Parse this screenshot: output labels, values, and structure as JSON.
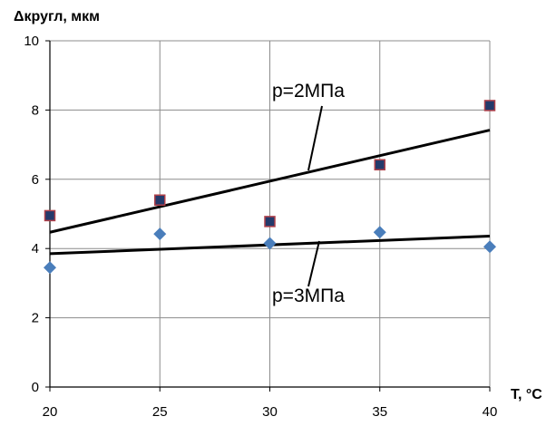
{
  "chart_data": {
    "type": "scatter",
    "ylabel": "Δкругл, мкм",
    "xlabel": "T, °C",
    "xlim": [
      20,
      40
    ],
    "ylim": [
      0,
      10
    ],
    "x_ticks": [
      20,
      25,
      30,
      35,
      40
    ],
    "y_ticks": [
      0,
      2,
      4,
      6,
      8,
      10
    ],
    "grid": true,
    "series": [
      {
        "marker": "square",
        "color": "#243a6b",
        "edge_color": "#b0404a",
        "points": [
          {
            "x": 20,
            "y": 4.95
          },
          {
            "x": 25,
            "y": 5.4
          },
          {
            "x": 30,
            "y": 4.78
          },
          {
            "x": 35,
            "y": 6.42
          },
          {
            "x": 40,
            "y": 8.13
          }
        ],
        "trendline": {
          "x": [
            20,
            40
          ],
          "y": [
            4.47,
            7.42
          ]
        }
      },
      {
        "marker": "diamond",
        "color": "#4a7ebb",
        "points": [
          {
            "x": 20,
            "y": 3.45
          },
          {
            "x": 25,
            "y": 4.42
          },
          {
            "x": 30,
            "y": 4.15
          },
          {
            "x": 35,
            "y": 4.47
          },
          {
            "x": 40,
            "y": 4.05
          }
        ],
        "trendline": {
          "x": [
            20,
            40
          ],
          "y": [
            3.85,
            4.36
          ]
        }
      }
    ],
    "annotations": [
      {
        "text": "p=2МПа",
        "target_series": 0
      },
      {
        "text": "p=3МПа",
        "target_series": 1
      }
    ]
  }
}
